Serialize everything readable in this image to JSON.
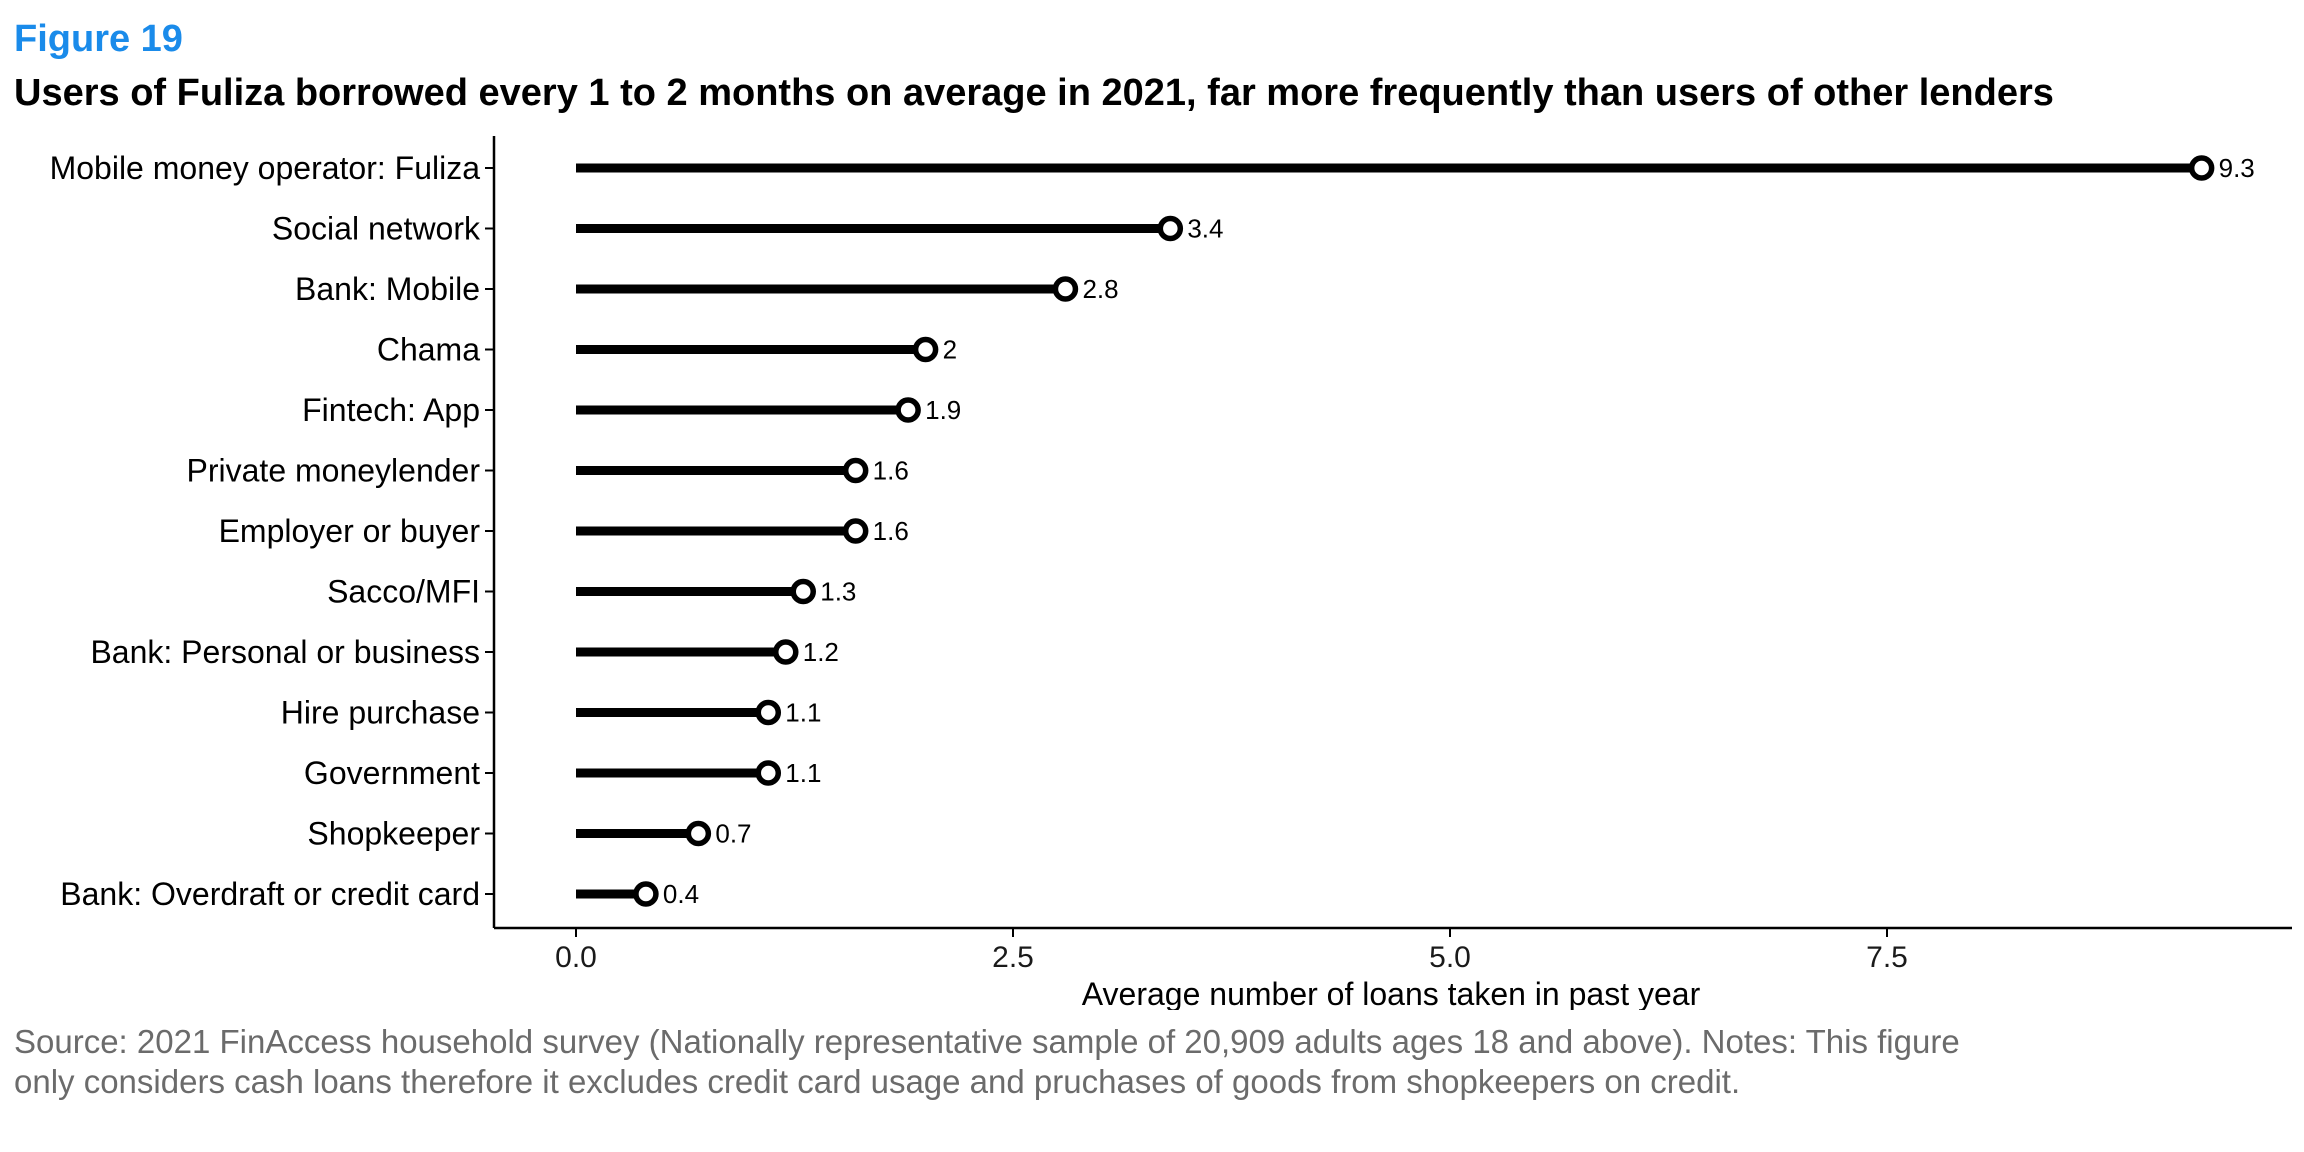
{
  "figure_label": "Figure 19",
  "title": "Users of Fuliza borrowed every 1 to 2 months on average in 2021, far more frequently than users of other lenders",
  "source_note": "Source: 2021 FinAccess household survey (Nationally representative sample of 20,909 adults ages 18 and above). Notes: This figure only considers cash loans therefore it excludes credit card usage and pruchases of goods from shopkeepers on credit.",
  "colors": {
    "figure_label": "#1a8bea",
    "lollipop": "#000000",
    "marker_fill": "#ffffff",
    "source_text": "#6b6b6b"
  },
  "chart_data": {
    "type": "bar",
    "style": "lollipop-horizontal",
    "categories": [
      "Mobile money operator: Fuliza",
      "Social network",
      "Bank: Mobile",
      "Chama",
      "Fintech: App",
      "Private moneylender",
      "Employer or buyer",
      "Sacco/MFI",
      "Bank: Personal or business",
      "Hire purchase",
      "Government",
      "Shopkeeper",
      "Bank: Overdraft or credit card"
    ],
    "values": [
      9.3,
      3.4,
      2.8,
      2,
      1.9,
      1.6,
      1.6,
      1.3,
      1.2,
      1.1,
      1.1,
      0.7,
      0.4
    ],
    "value_labels": [
      "9.3",
      "3.4",
      "2.8",
      "2",
      "1.9",
      "1.6",
      "1.6",
      "1.3",
      "1.2",
      "1.1",
      "1.1",
      "0.7",
      "0.4"
    ],
    "xlabel": "Average number of loans taken in past year",
    "ylabel": "",
    "xlim": [
      -0.2,
      9.5
    ],
    "x_ticks": [
      0,
      2.5,
      5,
      7.5
    ],
    "x_tick_labels": [
      "0.0",
      "2.5",
      "5.0",
      "7.5"
    ],
    "grid": false,
    "legend": "none"
  }
}
